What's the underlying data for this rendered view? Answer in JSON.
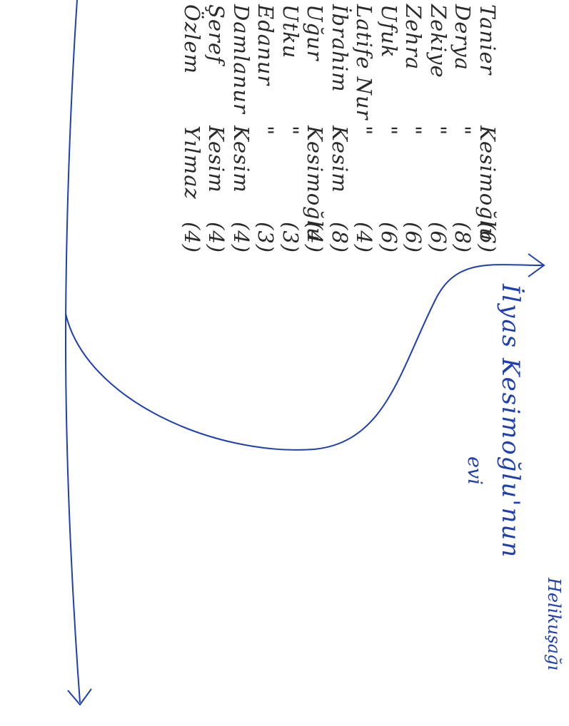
{
  "rows": [
    {
      "name": "Tanier",
      "surname": "Kesimoğlu",
      "count": "(6)"
    },
    {
      "name": "Derya",
      "surname": "\"",
      "count": "(8)"
    },
    {
      "name": "Zekiye",
      "surname": "\"",
      "count": "(6)"
    },
    {
      "name": "Zehra",
      "surname": "\"",
      "count": "(6)"
    },
    {
      "name": "Ufuk",
      "surname": "\"",
      "count": "(6)"
    },
    {
      "name": "Latife Nur",
      "surname": "\"",
      "count": "(4)"
    },
    {
      "name": "İbrahim",
      "surname": "Kesim",
      "count": "(8)"
    },
    {
      "name": "Uğur",
      "surname": "Kesimoğlu",
      "count": "(4)"
    },
    {
      "name": "Utku",
      "surname": "\"",
      "count": "(3)"
    },
    {
      "name": "Edanur",
      "surname": "\"",
      "count": "(3)"
    },
    {
      "name": "Damlanur",
      "surname": "Kesim",
      "count": "(4)"
    },
    {
      "name": "Şeref",
      "surname": "Kesim",
      "count": "(4)"
    },
    {
      "name": "Özlem",
      "surname": "Yılmaz",
      "count": "(4)"
    }
  ],
  "annotations": {
    "house": "İlyas Kesimoğlu'nun",
    "house_line2": "evi",
    "tree": "Helikuşağı"
  },
  "colors": {
    "ink": "#2a2a2a",
    "pen": "#1f3fb0"
  }
}
